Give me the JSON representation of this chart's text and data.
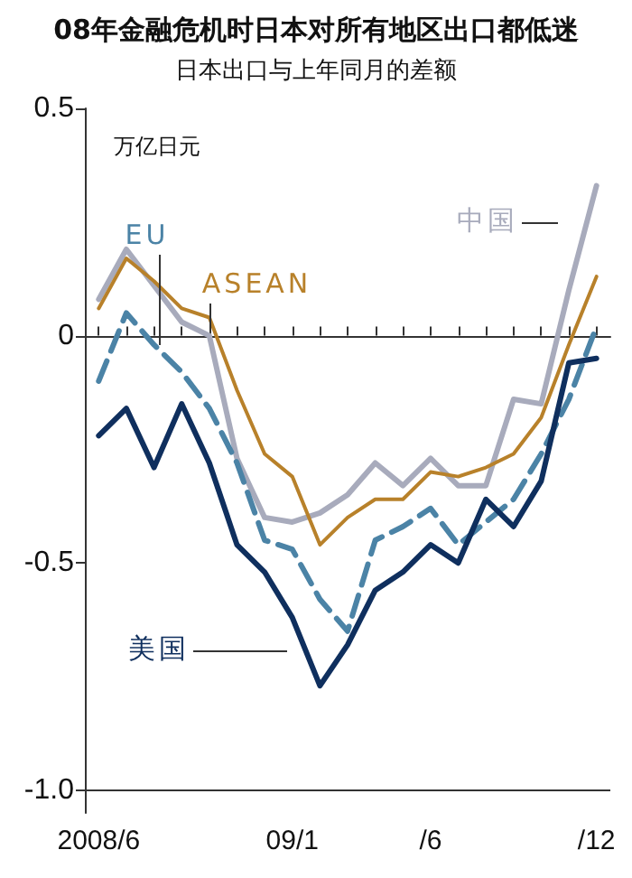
{
  "chart_data": {
    "type": "line",
    "title": "08年金融危机时日本对所有地区出口都低迷",
    "subtitle": "日本出口与上年同月的差额",
    "ylabel": "万亿日元",
    "categories": [
      "2008/6",
      null,
      null,
      null,
      null,
      null,
      null,
      "09/1",
      null,
      null,
      null,
      null,
      "/6",
      null,
      null,
      null,
      null,
      null,
      "/12"
    ],
    "series": [
      {
        "name": "中国",
        "color": "#a8abbc",
        "values": [
          0.08,
          0.19,
          0.11,
          0.03,
          0.0,
          -0.27,
          -0.4,
          -0.41,
          -0.39,
          -0.35,
          -0.28,
          -0.33,
          -0.27,
          -0.33,
          -0.33,
          -0.14,
          -0.15,
          0.1,
          0.33
        ]
      },
      {
        "name": "ASEAN",
        "color": "#b8812a",
        "values": [
          0.06,
          0.17,
          0.12,
          0.06,
          0.04,
          -0.12,
          -0.26,
          -0.31,
          -0.46,
          -0.4,
          -0.36,
          -0.36,
          -0.3,
          -0.31,
          -0.29,
          -0.26,
          -0.18,
          -0.02,
          0.13
        ]
      },
      {
        "name": "EU",
        "color": "#4b83a6",
        "line_style": "dashed",
        "values": [
          -0.1,
          0.05,
          -0.02,
          -0.08,
          -0.16,
          -0.28,
          -0.45,
          -0.47,
          -0.58,
          -0.65,
          -0.45,
          -0.42,
          -0.38,
          -0.46,
          -0.41,
          -0.36,
          -0.26,
          -0.14,
          0.02
        ]
      },
      {
        "name": "美国",
        "color": "#0f2f5e",
        "values": [
          -0.22,
          -0.16,
          -0.29,
          -0.15,
          -0.28,
          -0.46,
          -0.52,
          -0.62,
          -0.77,
          -0.68,
          -0.56,
          -0.52,
          -0.46,
          -0.5,
          -0.36,
          -0.42,
          -0.32,
          -0.06,
          -0.05
        ]
      }
    ],
    "ylim": [
      -1.05,
      0.5
    ],
    "yticks": [
      0.5,
      0,
      -0.5,
      {
        "value": -1,
        "label": "-1.0"
      }
    ],
    "ref_lines": [
      {
        "axis": "y",
        "value": 0,
        "color": "#333333"
      },
      {
        "axis": "y",
        "value": -1,
        "color": "#333333"
      }
    ],
    "grid": false,
    "legend": false,
    "marker": "none",
    "line_style": "solid"
  }
}
